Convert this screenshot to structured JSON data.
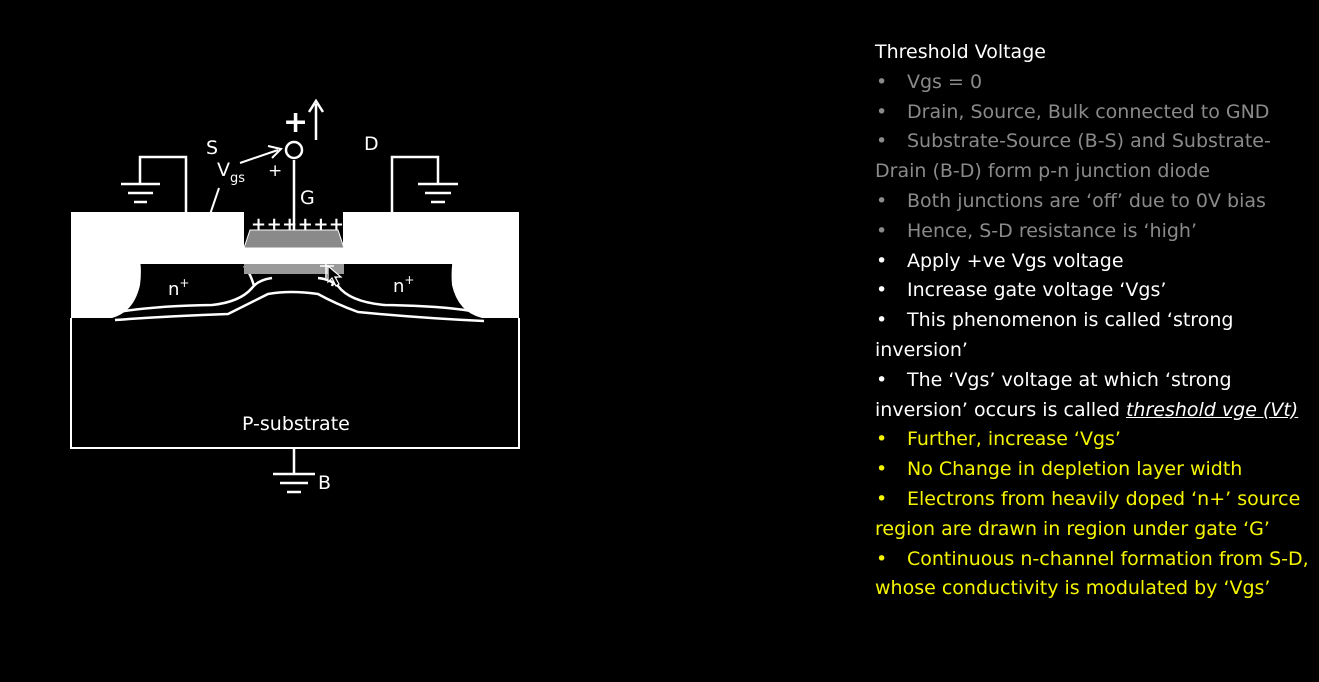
{
  "diagram": {
    "terminals": {
      "source": "S",
      "drain": "D",
      "gate": "G",
      "bulk": "B",
      "vgs_main": "V",
      "vgs_sub": "gs",
      "plus_sign": "+",
      "minus_sign": "-",
      "big_plus": "+",
      "gate_charges": "+++++++"
    },
    "regions": {
      "source_doping": "n",
      "drain_doping": "n",
      "doping_sup": "+",
      "substrate": "P-substrate"
    },
    "colors": {
      "background": "#000000",
      "lines": "#ffffff",
      "gate_oxide": "#8a8a8a"
    }
  },
  "notes": {
    "title": "Threshold Voltage",
    "items": [
      {
        "text": "Vgs = 0",
        "color": "grey"
      },
      {
        "text": "Drain, Source, Bulk connected to GND",
        "color": "grey"
      },
      {
        "text": "Substrate-Source (B-S) and Substrate-Drain (B-D) form p-n junction diode",
        "color": "grey"
      },
      {
        "text": "Both junctions are ‘off’ due to 0V bias",
        "color": "grey"
      },
      {
        "text": "Hence, S-D resistance is ‘high’",
        "color": "grey"
      },
      {
        "text": "Apply +ve Vgs voltage",
        "color": "white"
      },
      {
        "text": "Increase gate voltage ‘Vgs’",
        "color": "white"
      },
      {
        "text": "This phenomenon is called ‘strong inversion’",
        "color": "white"
      },
      {
        "text": "The ‘Vgs’ voltage at which ‘strong inversion’ occurs is called ",
        "emphasis": "threshold vge (Vt)",
        "color": "white"
      },
      {
        "text": "Further, increase ‘Vgs’",
        "color": "yellow"
      },
      {
        "text": "No Change in depletion layer width",
        "color": "yellow"
      },
      {
        "text": "Electrons from heavily doped ‘n+’ source region are drawn in region under gate ‘G’",
        "color": "yellow"
      },
      {
        "text": "Continuous n-channel formation from S-D, whose conductivity is modulated by ‘Vgs’",
        "color": "yellow"
      }
    ],
    "bullet": "•"
  }
}
